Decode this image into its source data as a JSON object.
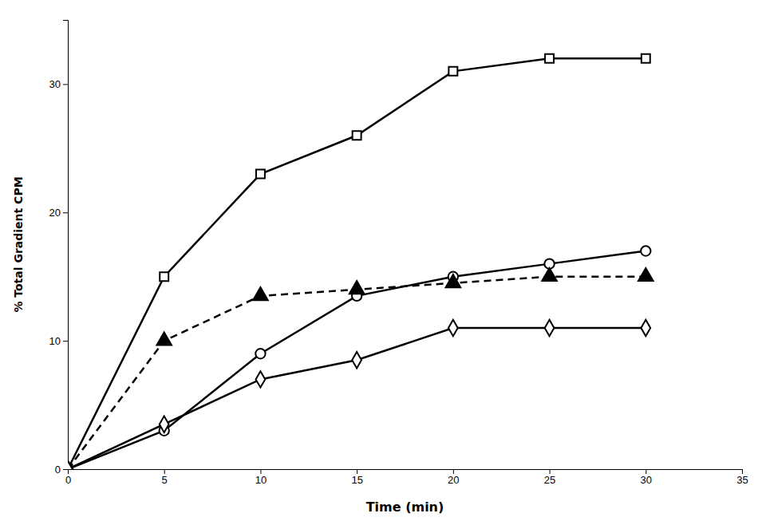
{
  "chart_data": {
    "type": "line",
    "xlabel": "Time (min)",
    "ylabel": "% Total Gradient CPM",
    "x": [
      0,
      5,
      10,
      15,
      20,
      25,
      30
    ],
    "series": [
      {
        "color": "#000000",
        "marker": "square-open",
        "line_style": "solid",
        "values": [
          0,
          15,
          23,
          26,
          31,
          32,
          32
        ]
      },
      {
        "color": "#000000",
        "marker": "circle-open",
        "line_style": "solid",
        "values": [
          0,
          3,
          9,
          13.5,
          15,
          16,
          17
        ]
      },
      {
        "color": "#000000",
        "marker": "triangle-filled",
        "line_style": "dashed",
        "values": [
          0,
          10,
          13.5,
          14,
          14.5,
          15,
          15
        ]
      },
      {
        "color": "#000000",
        "marker": "diamond-open",
        "line_style": "solid",
        "values": [
          0,
          3.5,
          7,
          8.5,
          11,
          11,
          11
        ]
      }
    ],
    "xlim": [
      0,
      35
    ],
    "ylim": [
      0,
      35
    ],
    "xticks": [
      0,
      5,
      10,
      15,
      20,
      25,
      30,
      35
    ],
    "yticks": [
      0,
      10,
      20,
      30
    ],
    "grid": false
  }
}
